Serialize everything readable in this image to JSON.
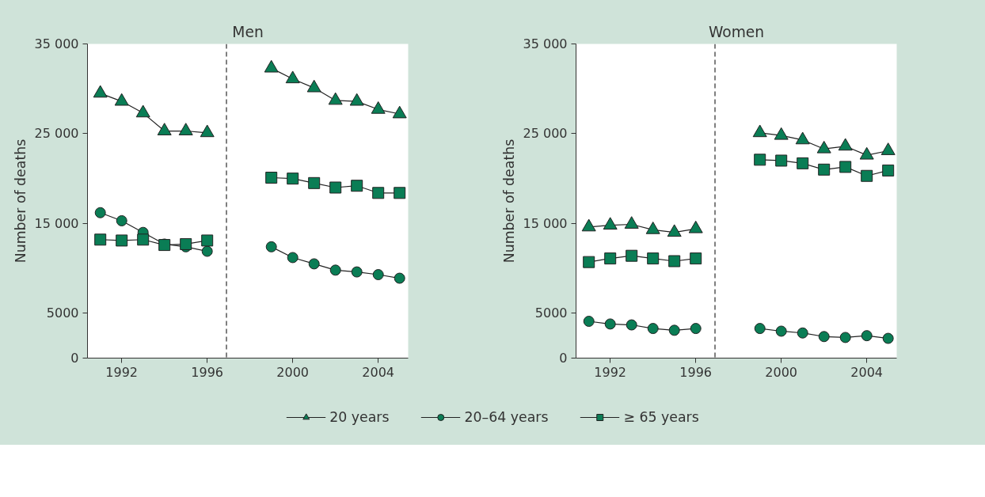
{
  "chart_data": [
    {
      "type": "line",
      "title": "Men",
      "ylabel": "Number of deaths",
      "x": [
        1991,
        1992,
        1993,
        1994,
        1995,
        1996,
        1997,
        1998,
        1999,
        2000,
        2001,
        2002,
        2003,
        2004,
        2005
      ],
      "xlim": [
        1990.4,
        2005.4
      ],
      "xticks": [
        1992,
        1996,
        2000,
        2004
      ],
      "ylim": [
        0,
        35000
      ],
      "yticks": [
        0,
        {
          "value": 5000,
          "label": "5000"
        },
        {
          "value": 15000,
          "label": "15 000"
        },
        {
          "value": 25000,
          "label": "25 000"
        },
        {
          "value": 35000,
          "label": "35 000"
        }
      ],
      "grid": false,
      "legend": "bottom",
      "line_style": "solid",
      "ref_lines": [
        {
          "axis": "x",
          "value": 1996.9,
          "color": "#555555",
          "line_style": "dashed"
        }
      ],
      "series": [
        {
          "name": "20 years",
          "marker": "triangle",
          "color": "#0a7d55",
          "values": [
            29500,
            28600,
            27300,
            25300,
            25300,
            25100,
            null,
            null,
            32300,
            31100,
            30100,
            28700,
            28600,
            27700,
            27200
          ]
        },
        {
          "name": "20–64 years",
          "marker": "circle",
          "color": "#0a7d55",
          "values": [
            16200,
            15300,
            14000,
            12700,
            12400,
            11900,
            null,
            null,
            12400,
            11200,
            10500,
            9800,
            9600,
            9300,
            8900
          ]
        },
        {
          "name": "≥ 65 years",
          "marker": "square",
          "color": "#0a7d55",
          "values": [
            13200,
            13100,
            13200,
            12600,
            12700,
            13100,
            null,
            null,
            20100,
            20000,
            19500,
            19000,
            19200,
            18400,
            18400
          ]
        }
      ]
    },
    {
      "type": "line",
      "title": "Women",
      "ylabel": "Number of deaths",
      "x": [
        1991,
        1992,
        1993,
        1994,
        1995,
        1996,
        1997,
        1998,
        1999,
        2000,
        2001,
        2002,
        2003,
        2004,
        2005
      ],
      "xlim": [
        1990.4,
        2005.4
      ],
      "xticks": [
        1992,
        1996,
        2000,
        2004
      ],
      "ylim": [
        0,
        35000
      ],
      "yticks": [
        0,
        {
          "value": 5000,
          "label": "5000"
        },
        {
          "value": 15000,
          "label": "15 000"
        },
        {
          "value": 25000,
          "label": "25 000"
        },
        {
          "value": 35000,
          "label": "35 000"
        }
      ],
      "grid": false,
      "line_style": "solid",
      "ref_lines": [
        {
          "axis": "x",
          "value": 1996.9,
          "color": "#555555",
          "line_style": "dashed"
        }
      ],
      "series": [
        {
          "marker": "triangle",
          "color": "#0a7d55",
          "values": [
            14600,
            14800,
            14900,
            14300,
            14000,
            14400,
            null,
            null,
            25100,
            24800,
            24300,
            23300,
            23600,
            22600,
            23100
          ]
        },
        {
          "marker": "circle",
          "color": "#0a7d55",
          "values": [
            4100,
            3800,
            3700,
            3300,
            3100,
            3300,
            null,
            null,
            3300,
            3000,
            2800,
            2400,
            2300,
            2500,
            2200
          ]
        },
        {
          "marker": "square",
          "color": "#0a7d55",
          "values": [
            10700,
            11100,
            11400,
            11100,
            10800,
            11100,
            null,
            null,
            22100,
            22000,
            21700,
            21000,
            21300,
            20300,
            20900
          ]
        }
      ]
    }
  ]
}
